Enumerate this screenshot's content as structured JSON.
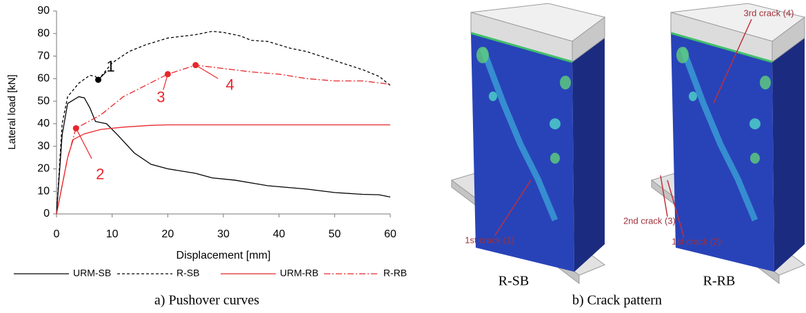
{
  "chart_data": {
    "type": "line",
    "xlabel": "Displacement [mm]",
    "ylabel": "Lateral load [kN]",
    "caption": "a) Pushover curves",
    "xlim": [
      0,
      60
    ],
    "xticks": [
      0,
      10,
      20,
      30,
      40,
      50,
      60
    ],
    "ylim": [
      0,
      90
    ],
    "yticks": [
      0,
      10,
      20,
      30,
      40,
      50,
      60,
      70,
      80,
      90
    ],
    "series": [
      {
        "name": "URM-SB",
        "color": "#000000",
        "dash": "solid",
        "x": [
          0,
          1,
          2,
          4,
          5,
          6,
          7,
          9,
          11,
          14,
          17,
          20,
          25,
          28,
          32,
          38,
          45,
          50,
          55,
          58,
          60
        ],
        "values": [
          0,
          35,
          49,
          52,
          51.5,
          47,
          41,
          40,
          35,
          27,
          22,
          20,
          18,
          16,
          15,
          12.5,
          11,
          9.5,
          8.7,
          8.5,
          7.5
        ]
      },
      {
        "name": "R-SB",
        "color": "#000000",
        "dash": "dashed",
        "x": [
          0,
          1,
          2,
          4,
          6,
          7,
          7.5,
          10,
          13,
          16,
          20,
          25,
          28,
          30,
          33,
          35,
          38,
          42,
          45,
          50,
          55,
          58,
          60
        ],
        "values": [
          0,
          40,
          52,
          58,
          61.5,
          61,
          59.5,
          67,
          72,
          75,
          78,
          79.5,
          81,
          80.5,
          79,
          77,
          76.5,
          73.5,
          72,
          68,
          64,
          61,
          57
        ]
      },
      {
        "name": "URM-RB",
        "color": "#e8262b",
        "dash": "solid",
        "x": [
          0,
          2,
          3,
          5,
          8,
          12,
          17,
          20,
          30,
          60
        ],
        "values": [
          0,
          25,
          33,
          35.5,
          37.5,
          38.5,
          39.3,
          39.5,
          39.5,
          39.5
        ]
      },
      {
        "name": "R-RB",
        "color": "#e8262b",
        "dash": "dashdot",
        "x": [
          0,
          2,
          3.5,
          5,
          8,
          12,
          16,
          20,
          25,
          30,
          35,
          40,
          45,
          50,
          55,
          60
        ],
        "values": [
          0,
          25,
          38,
          40,
          44,
          52,
          57,
          62,
          66,
          64.5,
          63,
          62,
          60,
          59,
          59,
          57.5
        ]
      }
    ],
    "annotations": [
      {
        "label": "1",
        "x": 7.5,
        "y": 59.5,
        "color": "#000000"
      },
      {
        "label": "2",
        "x": 3.5,
        "y": 38,
        "color": "#e8262b"
      },
      {
        "label": "3",
        "x": 20,
        "y": 62,
        "color": "#e8262b"
      },
      {
        "label": "4",
        "x": 25,
        "y": 66,
        "color": "#e8262b"
      }
    ]
  },
  "crack_pattern": {
    "caption": "b) Crack pattern",
    "walls": [
      {
        "label": "R-SB",
        "cracks": [
          "1st crack (1)"
        ]
      },
      {
        "label": "R-RB",
        "cracks": [
          "2nd crack (3)",
          "1st crack (2)",
          "3rd crack (4)"
        ]
      }
    ]
  }
}
